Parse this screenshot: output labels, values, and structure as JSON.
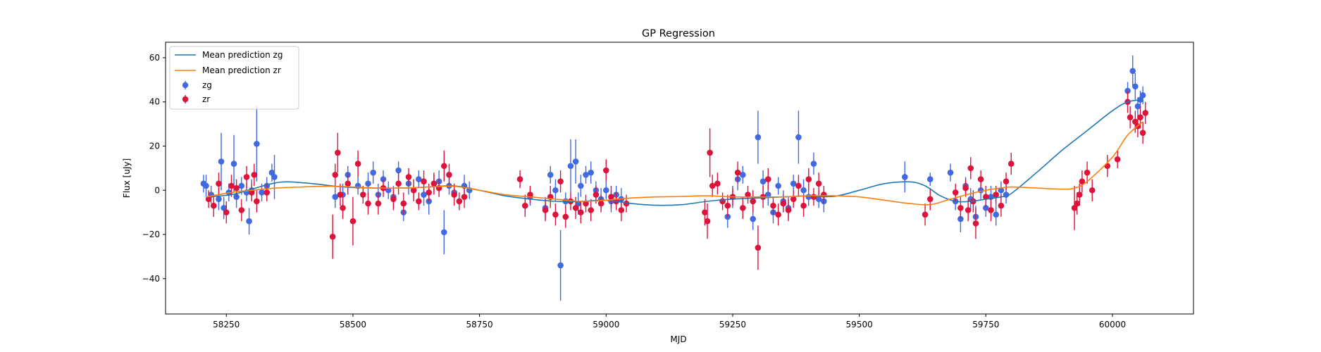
{
  "chart_data": {
    "type": "scatter",
    "title": "GP Regression",
    "xlabel": "MJD",
    "ylabel": "Flux [uJy]",
    "xlim": [
      58130,
      60160
    ],
    "ylim": [
      -56,
      67
    ],
    "xticks": [
      58250,
      58500,
      58750,
      59000,
      59250,
      59500,
      59750,
      60000
    ],
    "yticks": [
      -40,
      -20,
      0,
      20,
      40,
      60
    ],
    "grid": false,
    "legend_position": "top-left",
    "colors": {
      "zg": "#4169e1",
      "zr": "#dc143c",
      "mean_zg": "#1f77b4",
      "mean_zr": "#ff7f0e"
    },
    "legend": [
      "Mean prediction zg",
      "Mean prediction zr",
      "zg",
      "zr"
    ],
    "mean_lines": [
      {
        "name": "Mean prediction zg",
        "color": "#1f77b4",
        "x": [
          58210,
          58260,
          58300,
          58340,
          58370,
          58420,
          58480,
          58540,
          58600,
          58650,
          58700,
          58750,
          58800,
          58850,
          58900,
          58950,
          59000,
          59050,
          59100,
          59150,
          59200,
          59250,
          59300,
          59350,
          59400,
          59450,
          59500,
          59550,
          59600,
          59630,
          59660,
          59690,
          59720,
          59750,
          59780,
          59800,
          59850,
          59900,
          59950,
          60000,
          60030,
          60060
        ],
        "y": [
          -3,
          -2,
          0.5,
          3,
          3.8,
          3,
          1.5,
          1,
          1,
          1.5,
          2,
          0,
          -2.5,
          -4,
          -5,
          -5,
          -4.5,
          -6,
          -6.8,
          -6.5,
          -5,
          -4,
          -3.5,
          -3,
          -2.5,
          -2.8,
          0,
          3,
          3.8,
          2,
          -2.5,
          -5,
          -5,
          -4,
          -3,
          -1.5,
          8,
          18,
          27,
          36,
          40,
          41
        ]
      },
      {
        "name": "Mean prediction zr",
        "color": "#ff7f0e",
        "x": [
          58210,
          58260,
          58300,
          58350,
          58400,
          58450,
          58500,
          58550,
          58600,
          58650,
          58700,
          58750,
          58800,
          58850,
          58900,
          58950,
          59000,
          59050,
          59100,
          59150,
          59200,
          59250,
          59300,
          59350,
          59400,
          59450,
          59500,
          59550,
          59600,
          59640,
          59680,
          59720,
          59750,
          59780,
          59800,
          59850,
          59900,
          59925,
          59950,
          60000,
          60030,
          60060
        ],
        "y": [
          -3,
          -1,
          0,
          1,
          1.5,
          1.8,
          1.5,
          1,
          1,
          1.5,
          1.8,
          0,
          -2,
          -3,
          -4,
          -5,
          -4.5,
          -3.5,
          -3,
          -2.8,
          -2.5,
          -3,
          -3,
          -3,
          -2.5,
          -2.5,
          -3,
          -4.5,
          -6,
          -6.5,
          -4,
          -1.5,
          0,
          1,
          1.5,
          1,
          0.5,
          1,
          4,
          15,
          25,
          31
        ]
      }
    ],
    "series": [
      {
        "name": "zg",
        "color": "#4169e1",
        "points": [
          [
            58205,
            3,
            4
          ],
          [
            58210,
            2,
            5
          ],
          [
            58220,
            -2,
            4
          ],
          [
            58235,
            -4,
            5
          ],
          [
            58240,
            13,
            13
          ],
          [
            58245,
            -8,
            5
          ],
          [
            58255,
            -1,
            4
          ],
          [
            58265,
            12,
            13
          ],
          [
            58270,
            -3,
            5
          ],
          [
            58280,
            2,
            4
          ],
          [
            58290,
            -1,
            4
          ],
          [
            58295,
            -14,
            6
          ],
          [
            58300,
            0,
            5
          ],
          [
            58310,
            21,
            17
          ],
          [
            58320,
            -1,
            4
          ],
          [
            58330,
            2,
            4
          ],
          [
            58340,
            8,
            4
          ],
          [
            58345,
            6,
            10
          ],
          [
            58465,
            -3,
            5
          ],
          [
            58480,
            -2,
            5
          ],
          [
            58490,
            7,
            4
          ],
          [
            58510,
            2,
            4
          ],
          [
            58530,
            3,
            5
          ],
          [
            58540,
            8,
            5
          ],
          [
            58550,
            -2,
            5
          ],
          [
            58560,
            5,
            4
          ],
          [
            58570,
            0,
            4
          ],
          [
            58580,
            -3,
            5
          ],
          [
            58590,
            9,
            4
          ],
          [
            58600,
            -10,
            4
          ],
          [
            58610,
            3,
            5
          ],
          [
            58620,
            0,
            4
          ],
          [
            58630,
            5,
            4
          ],
          [
            58640,
            -2,
            5
          ],
          [
            58650,
            -5,
            6
          ],
          [
            58660,
            3,
            4
          ],
          [
            58670,
            4,
            5
          ],
          [
            58680,
            -19,
            10
          ],
          [
            58690,
            2,
            4
          ],
          [
            58700,
            -1,
            4
          ],
          [
            58720,
            2,
            5
          ],
          [
            58730,
            0,
            4
          ],
          [
            58850,
            -3,
            4
          ],
          [
            58880,
            -8,
            5
          ],
          [
            58890,
            7,
            4
          ],
          [
            58900,
            0,
            5
          ],
          [
            58910,
            -34,
            16
          ],
          [
            58920,
            -5,
            4
          ],
          [
            58930,
            11,
            12
          ],
          [
            58940,
            13,
            10
          ],
          [
            58945,
            -6,
            5
          ],
          [
            58950,
            2,
            5
          ],
          [
            58960,
            7,
            4
          ],
          [
            58970,
            8,
            5
          ],
          [
            58980,
            0,
            4
          ],
          [
            58990,
            -4,
            5
          ],
          [
            59000,
            0,
            4
          ],
          [
            59010,
            -5,
            5
          ],
          [
            59020,
            -2,
            4
          ],
          [
            59030,
            -4,
            5
          ],
          [
            59240,
            -12,
            5
          ],
          [
            59250,
            -3,
            5
          ],
          [
            59260,
            5,
            5
          ],
          [
            59270,
            7,
            4
          ],
          [
            59290,
            -13,
            5
          ],
          [
            59300,
            24,
            12
          ],
          [
            59310,
            4,
            5
          ],
          [
            59320,
            -2,
            5
          ],
          [
            59330,
            -10,
            5
          ],
          [
            59340,
            2,
            4
          ],
          [
            59350,
            -5,
            5
          ],
          [
            59360,
            -8,
            5
          ],
          [
            59370,
            3,
            4
          ],
          [
            59380,
            24,
            12
          ],
          [
            59390,
            0,
            5
          ],
          [
            59400,
            -3,
            4
          ],
          [
            59410,
            12,
            5
          ],
          [
            59420,
            -4,
            4
          ],
          [
            59430,
            -5,
            5
          ],
          [
            59590,
            6,
            7
          ],
          [
            59640,
            5,
            3
          ],
          [
            59680,
            8,
            4
          ],
          [
            59690,
            -5,
            4
          ],
          [
            59700,
            -13,
            6
          ],
          [
            59710,
            2,
            4
          ],
          [
            59720,
            -4,
            5
          ],
          [
            59730,
            -12,
            5
          ],
          [
            59740,
            0,
            4
          ],
          [
            59750,
            -8,
            4
          ],
          [
            59760,
            -3,
            5
          ],
          [
            59770,
            -11,
            5
          ],
          [
            59780,
            0,
            4
          ],
          [
            59790,
            -2,
            4
          ],
          [
            60030,
            45,
            4
          ],
          [
            60040,
            54,
            7
          ],
          [
            60045,
            47,
            6
          ],
          [
            60050,
            38,
            4
          ],
          [
            60055,
            41,
            4
          ],
          [
            60060,
            43,
            4
          ]
        ]
      },
      {
        "name": "zr",
        "color": "#dc143c",
        "points": [
          [
            58215,
            -4,
            4
          ],
          [
            58225,
            -7,
            5
          ],
          [
            58235,
            3,
            5
          ],
          [
            58250,
            -10,
            5
          ],
          [
            58260,
            2,
            5
          ],
          [
            58270,
            1,
            4
          ],
          [
            58280,
            -9,
            5
          ],
          [
            58290,
            6,
            5
          ],
          [
            58300,
            -1,
            4
          ],
          [
            58305,
            7,
            5
          ],
          [
            58310,
            -5,
            5
          ],
          [
            58330,
            -1,
            4
          ],
          [
            58460,
            -21,
            10
          ],
          [
            58465,
            7,
            5
          ],
          [
            58470,
            17,
            9
          ],
          [
            58475,
            -2,
            5
          ],
          [
            58480,
            -8,
            5
          ],
          [
            58490,
            3,
            5
          ],
          [
            58500,
            -14,
            11
          ],
          [
            58510,
            12,
            6
          ],
          [
            58520,
            -2,
            4
          ],
          [
            58530,
            -6,
            5
          ],
          [
            58550,
            -6,
            5
          ],
          [
            58560,
            1,
            4
          ],
          [
            58580,
            -4,
            5
          ],
          [
            58590,
            3,
            5
          ],
          [
            58600,
            -6,
            5
          ],
          [
            58610,
            6,
            4
          ],
          [
            58620,
            0,
            5
          ],
          [
            58630,
            -5,
            4
          ],
          [
            58640,
            4,
            5
          ],
          [
            58650,
            -1,
            4
          ],
          [
            58660,
            3,
            5
          ],
          [
            58670,
            1,
            4
          ],
          [
            58680,
            11,
            7
          ],
          [
            58690,
            7,
            5
          ],
          [
            58700,
            -2,
            5
          ],
          [
            58710,
            -5,
            4
          ],
          [
            58720,
            -3,
            5
          ],
          [
            58830,
            5,
            4
          ],
          [
            58840,
            -7,
            5
          ],
          [
            58850,
            -2,
            4
          ],
          [
            58880,
            -9,
            5
          ],
          [
            58890,
            -3,
            5
          ],
          [
            58900,
            -11,
            5
          ],
          [
            58910,
            4,
            5
          ],
          [
            58920,
            -12,
            5
          ],
          [
            58930,
            -5,
            4
          ],
          [
            58940,
            -8,
            5
          ],
          [
            58950,
            -10,
            5
          ],
          [
            58960,
            -6,
            4
          ],
          [
            58970,
            -9,
            5
          ],
          [
            58980,
            -2,
            4
          ],
          [
            58990,
            -6,
            4
          ],
          [
            59000,
            9,
            5
          ],
          [
            59010,
            -3,
            5
          ],
          [
            59020,
            -5,
            4
          ],
          [
            59030,
            -9,
            5
          ],
          [
            59040,
            -6,
            4
          ],
          [
            59195,
            -10,
            6
          ],
          [
            59200,
            -14,
            8
          ],
          [
            59205,
            17,
            11
          ],
          [
            59210,
            2,
            5
          ],
          [
            59220,
            3,
            5
          ],
          [
            59230,
            -5,
            4
          ],
          [
            59240,
            -7,
            5
          ],
          [
            59250,
            -3,
            4
          ],
          [
            59260,
            8,
            5
          ],
          [
            59270,
            -8,
            5
          ],
          [
            59280,
            -2,
            4
          ],
          [
            59290,
            -5,
            5
          ],
          [
            59300,
            -26,
            10
          ],
          [
            59310,
            -3,
            5
          ],
          [
            59320,
            5,
            5
          ],
          [
            59330,
            -7,
            4
          ],
          [
            59340,
            -11,
            5
          ],
          [
            59350,
            -6,
            4
          ],
          [
            59360,
            -9,
            5
          ],
          [
            59370,
            -4,
            4
          ],
          [
            59380,
            2,
            5
          ],
          [
            59390,
            -7,
            5
          ],
          [
            59400,
            5,
            5
          ],
          [
            59410,
            -3,
            4
          ],
          [
            59420,
            3,
            5
          ],
          [
            59430,
            -2,
            4
          ],
          [
            59630,
            -11,
            5
          ],
          [
            59640,
            -4,
            5
          ],
          [
            59690,
            -1,
            4
          ],
          [
            59700,
            -8,
            5
          ],
          [
            59710,
            1,
            4
          ],
          [
            59715,
            -9,
            5
          ],
          [
            59720,
            10,
            5
          ],
          [
            59725,
            -5,
            5
          ],
          [
            59730,
            -15,
            7
          ],
          [
            59740,
            5,
            4
          ],
          [
            59750,
            -3,
            5
          ],
          [
            59760,
            -9,
            5
          ],
          [
            59770,
            -2,
            4
          ],
          [
            59780,
            -7,
            5
          ],
          [
            59790,
            4,
            4
          ],
          [
            59800,
            12,
            5
          ],
          [
            59925,
            -8,
            10
          ],
          [
            59930,
            -6,
            5
          ],
          [
            59935,
            -2,
            5
          ],
          [
            59940,
            4,
            5
          ],
          [
            59950,
            8,
            5
          ],
          [
            59960,
            0,
            5
          ],
          [
            59990,
            11,
            5
          ],
          [
            60010,
            14,
            4
          ],
          [
            60030,
            40,
            5
          ],
          [
            60035,
            33,
            5
          ],
          [
            60045,
            31,
            5
          ],
          [
            60050,
            29,
            5
          ],
          [
            60055,
            33,
            5
          ],
          [
            60060,
            26,
            5
          ],
          [
            60065,
            35,
            5
          ]
        ]
      }
    ]
  }
}
